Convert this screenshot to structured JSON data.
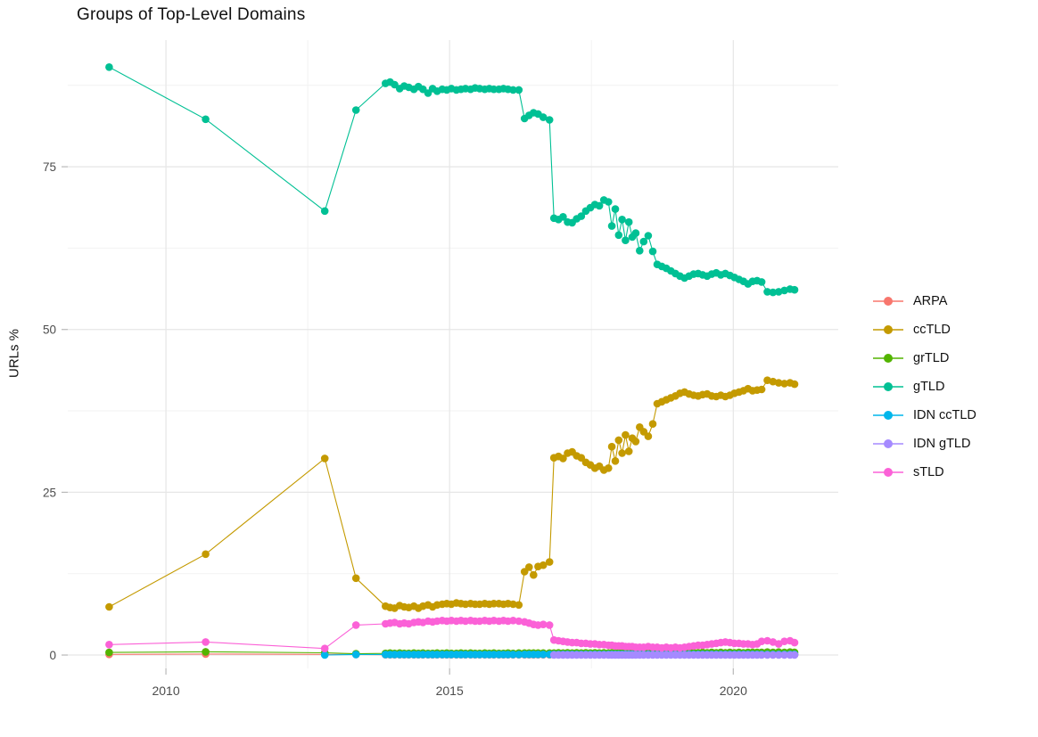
{
  "page": {
    "title": "Groups of Top-Level Domains"
  },
  "chart_data": {
    "type": "line",
    "title": "Groups of Top-Level Domains",
    "xlabel": "",
    "ylabel": "URLs %",
    "x_ticks": [
      2010,
      2015,
      2020
    ],
    "x_minor_ticks": [
      2012.5,
      2017.5
    ],
    "y_ticks": [
      0,
      25,
      50,
      75
    ],
    "y_minor_ticks": [
      12.5,
      37.5,
      62.5,
      87.5
    ],
    "xlim": [
      2008.27,
      2021.85
    ],
    "ylim": [
      -2.05,
      94.45
    ],
    "grid": true,
    "legend_position": "right",
    "x": [
      2009.0,
      2010.7,
      2012.8,
      2013.35,
      2013.87,
      2013.95,
      2014.03,
      2014.12,
      2014.2,
      2014.28,
      2014.37,
      2014.45,
      2014.53,
      2014.62,
      2014.7,
      2014.78,
      2014.87,
      2014.95,
      2015.03,
      2015.12,
      2015.2,
      2015.28,
      2015.37,
      2015.45,
      2015.53,
      2015.62,
      2015.7,
      2015.78,
      2015.87,
      2015.95,
      2016.03,
      2016.12,
      2016.22,
      2016.32,
      2016.4,
      2016.48,
      2016.56,
      2016.65,
      2016.76,
      2016.84,
      2016.92,
      2017.0,
      2017.08,
      2017.16,
      2017.24,
      2017.32,
      2017.4,
      2017.48,
      2017.56,
      2017.64,
      2017.72,
      2017.8,
      2017.86,
      2017.92,
      2017.98,
      2018.04,
      2018.1,
      2018.16,
      2018.22,
      2018.28,
      2018.35,
      2018.42,
      2018.5,
      2018.58,
      2018.66,
      2018.74,
      2018.82,
      2018.9,
      2018.98,
      2019.06,
      2019.14,
      2019.22,
      2019.3,
      2019.38,
      2019.46,
      2019.54,
      2019.62,
      2019.7,
      2019.78,
      2019.86,
      2019.94,
      2020.02,
      2020.1,
      2020.18,
      2020.26,
      2020.34,
      2020.42,
      2020.5,
      2020.6,
      2020.7,
      2020.8,
      2020.9,
      2021.0,
      2021.08
    ],
    "series": [
      {
        "name": "ARPA",
        "color": "#F8766D",
        "values": [
          0.1,
          0.15,
          0.1,
          0.08,
          0.05,
          0.05,
          0.05,
          0.05,
          0.05,
          0.05,
          0.05,
          0.05,
          0.05,
          0.05,
          0.05,
          0.05,
          0.05,
          0.05,
          0.05,
          0.05,
          0.05,
          0.05,
          0.05,
          0.05,
          0.05,
          0.05,
          0.05,
          0.05,
          0.05,
          0.05,
          0.05,
          0.05,
          0.05,
          0.05,
          0.05,
          0.05,
          0.05,
          0.05,
          0.05,
          0.05,
          0.05,
          0.05,
          0.05,
          0.05,
          0.05,
          0.05,
          0.05,
          0.05,
          0.05,
          0.05,
          0.05,
          0.05,
          0.05,
          0.05,
          0.05,
          0.05,
          0.05,
          0.05,
          0.05,
          0.05,
          0.05,
          0.05,
          0.05,
          0.05,
          0.05,
          0.05,
          0.05,
          0.05,
          0.05,
          0.05,
          0.05,
          0.05,
          0.05,
          0.05,
          0.05,
          0.05,
          0.05,
          0.05,
          0.05,
          0.05,
          0.05,
          0.05,
          0.05,
          0.05,
          0.05,
          0.05,
          0.05,
          0.05,
          0.05,
          0.05,
          0.05,
          0.05,
          0.05,
          0.05
        ]
      },
      {
        "name": "ccTLD",
        "color": "#C49A00",
        "values": [
          7.4,
          15.5,
          30.2,
          11.8,
          7.5,
          7.3,
          7.2,
          7.6,
          7.4,
          7.3,
          7.5,
          7.2,
          7.5,
          7.7,
          7.4,
          7.7,
          7.8,
          7.9,
          7.8,
          8.0,
          7.9,
          7.8,
          7.9,
          7.8,
          7.8,
          7.9,
          7.8,
          7.9,
          7.9,
          7.8,
          7.9,
          7.8,
          7.7,
          12.8,
          13.5,
          12.3,
          13.6,
          13.8,
          14.3,
          30.3,
          30.5,
          30.2,
          31.0,
          31.2,
          30.6,
          30.3,
          29.6,
          29.2,
          28.7,
          29.0,
          28.4,
          28.7,
          32.0,
          29.8,
          33.0,
          31.0,
          33.8,
          31.3,
          33.3,
          32.8,
          35.0,
          34.3,
          33.6,
          35.5,
          38.6,
          38.9,
          39.2,
          39.5,
          39.8,
          40.2,
          40.4,
          40.1,
          39.9,
          39.8,
          40.0,
          40.1,
          39.8,
          39.7,
          39.9,
          39.7,
          39.9,
          40.2,
          40.4,
          40.6,
          40.9,
          40.6,
          40.7,
          40.8,
          42.2,
          42.0,
          41.8,
          41.7,
          41.8,
          41.6
        ]
      },
      {
        "name": "grTLD",
        "color": "#53B400",
        "values": [
          0.4,
          0.5,
          0.35,
          0.2,
          0.25,
          0.3,
          0.25,
          0.3,
          0.25,
          0.25,
          0.3,
          0.25,
          0.3,
          0.25,
          0.25,
          0.3,
          0.25,
          0.3,
          0.25,
          0.25,
          0.3,
          0.25,
          0.3,
          0.25,
          0.25,
          0.3,
          0.25,
          0.3,
          0.25,
          0.25,
          0.3,
          0.25,
          0.3,
          0.3,
          0.3,
          0.3,
          0.3,
          0.3,
          0.3,
          0.3,
          0.35,
          0.3,
          0.35,
          0.3,
          0.35,
          0.3,
          0.35,
          0.3,
          0.35,
          0.3,
          0.35,
          0.3,
          0.35,
          0.3,
          0.35,
          0.3,
          0.35,
          0.3,
          0.35,
          0.3,
          0.35,
          0.3,
          0.35,
          0.3,
          0.4,
          0.35,
          0.4,
          0.35,
          0.4,
          0.35,
          0.4,
          0.35,
          0.4,
          0.35,
          0.4,
          0.35,
          0.4,
          0.35,
          0.4,
          0.35,
          0.4,
          0.35,
          0.4,
          0.35,
          0.4,
          0.4,
          0.4,
          0.4,
          0.45,
          0.4,
          0.45,
          0.4,
          0.45,
          0.4
        ]
      },
      {
        "name": "gTLD",
        "color": "#00C094",
        "values": [
          90.3,
          82.3,
          68.2,
          83.7,
          87.8,
          88.0,
          87.6,
          87.0,
          87.4,
          87.2,
          86.9,
          87.3,
          86.9,
          86.3,
          87.0,
          86.6,
          86.9,
          86.8,
          87.0,
          86.8,
          86.9,
          87.0,
          86.9,
          87.1,
          87.0,
          86.9,
          87.0,
          86.9,
          86.9,
          87.0,
          86.9,
          86.8,
          86.8,
          82.4,
          82.9,
          83.3,
          83.1,
          82.6,
          82.2,
          67.1,
          66.9,
          67.3,
          66.5,
          66.4,
          67.0,
          67.4,
          68.2,
          68.7,
          69.2,
          69.0,
          69.9,
          69.6,
          65.9,
          68.5,
          64.5,
          66.9,
          63.7,
          66.5,
          64.2,
          64.8,
          62.1,
          63.5,
          64.4,
          62.0,
          60.0,
          59.7,
          59.4,
          59.0,
          58.6,
          58.2,
          57.9,
          58.2,
          58.5,
          58.6,
          58.4,
          58.2,
          58.5,
          58.7,
          58.4,
          58.6,
          58.3,
          58.0,
          57.7,
          57.4,
          57.0,
          57.4,
          57.5,
          57.3,
          55.8,
          55.7,
          55.8,
          56.0,
          56.2,
          56.1
        ]
      },
      {
        "name": "IDN ccTLD",
        "color": "#00B6EB",
        "values": [
          null,
          null,
          0.0,
          0.08,
          0.08,
          0.08,
          0.08,
          0.08,
          0.08,
          0.08,
          0.08,
          0.08,
          0.08,
          0.08,
          0.08,
          0.08,
          0.08,
          0.08,
          0.08,
          0.08,
          0.08,
          0.08,
          0.08,
          0.08,
          0.08,
          0.08,
          0.08,
          0.08,
          0.08,
          0.08,
          0.08,
          0.08,
          0.08,
          0.1,
          0.1,
          0.1,
          0.1,
          0.1,
          0.1,
          0.1,
          0.1,
          0.1,
          0.1,
          0.1,
          0.1,
          0.1,
          0.1,
          0.1,
          0.1,
          0.1,
          0.1,
          0.1,
          0.1,
          0.1,
          0.1,
          0.1,
          0.1,
          0.1,
          0.1,
          0.1,
          0.1,
          0.1,
          0.1,
          0.1,
          0.1,
          0.1,
          0.1,
          0.1,
          0.1,
          0.1,
          0.1,
          0.1,
          0.1,
          0.1,
          0.1,
          0.1,
          0.1,
          0.1,
          0.1,
          0.1,
          0.1,
          0.1,
          0.1,
          0.1,
          0.1,
          0.1,
          0.1,
          0.1,
          0.1,
          0.1,
          0.1,
          0.1,
          0.1,
          0.1
        ]
      },
      {
        "name": "IDN gTLD",
        "color": "#A58AFF",
        "values": [
          null,
          null,
          null,
          null,
          null,
          null,
          null,
          null,
          null,
          null,
          null,
          null,
          null,
          null,
          null,
          null,
          null,
          null,
          null,
          null,
          null,
          null,
          null,
          null,
          null,
          null,
          null,
          null,
          null,
          null,
          null,
          null,
          null,
          null,
          null,
          null,
          null,
          null,
          null,
          0.02,
          0.02,
          0.02,
          0.02,
          0.02,
          0.02,
          0.02,
          0.02,
          0.02,
          0.02,
          0.02,
          0.02,
          0.02,
          0.02,
          0.02,
          0.02,
          0.02,
          0.02,
          0.02,
          0.02,
          0.02,
          0.02,
          0.02,
          0.02,
          0.02,
          0.02,
          0.02,
          0.02,
          0.02,
          0.02,
          0.02,
          0.02,
          0.02,
          0.02,
          0.02,
          0.02,
          0.02,
          0.02,
          0.02,
          0.02,
          0.02,
          0.02,
          0.02,
          0.02,
          0.02,
          0.02,
          0.02,
          0.02,
          0.02,
          0.02,
          0.02,
          0.02,
          0.02,
          0.02,
          0.02
        ]
      },
      {
        "name": "sTLD",
        "color": "#FB61D7",
        "values": [
          1.6,
          2.0,
          1.0,
          4.6,
          4.8,
          4.9,
          5.0,
          4.8,
          4.9,
          4.8,
          5.0,
          5.1,
          5.0,
          5.2,
          5.1,
          5.2,
          5.3,
          5.2,
          5.3,
          5.2,
          5.3,
          5.2,
          5.3,
          5.2,
          5.2,
          5.3,
          5.2,
          5.3,
          5.2,
          5.3,
          5.2,
          5.3,
          5.2,
          5.1,
          4.9,
          4.7,
          4.6,
          4.7,
          4.6,
          2.3,
          2.2,
          2.1,
          2.0,
          1.9,
          1.9,
          1.8,
          1.8,
          1.7,
          1.7,
          1.6,
          1.6,
          1.5,
          1.5,
          1.4,
          1.4,
          1.4,
          1.3,
          1.3,
          1.3,
          1.2,
          1.2,
          1.2,
          1.3,
          1.2,
          1.2,
          1.1,
          1.2,
          1.1,
          1.2,
          1.1,
          1.2,
          1.3,
          1.4,
          1.5,
          1.5,
          1.6,
          1.7,
          1.8,
          1.9,
          2.0,
          1.9,
          1.8,
          1.8,
          1.7,
          1.7,
          1.6,
          1.7,
          2.1,
          2.2,
          2.0,
          1.7,
          2.1,
          2.2,
          1.9
        ]
      }
    ],
    "style": {
      "grid_major_color": "#e6e6e6",
      "grid_minor_color": "#f2f2f2",
      "tick_color": "#b8b8b8",
      "tick_label_color": "#4d4d4d",
      "point_radius": 4.3
    }
  }
}
